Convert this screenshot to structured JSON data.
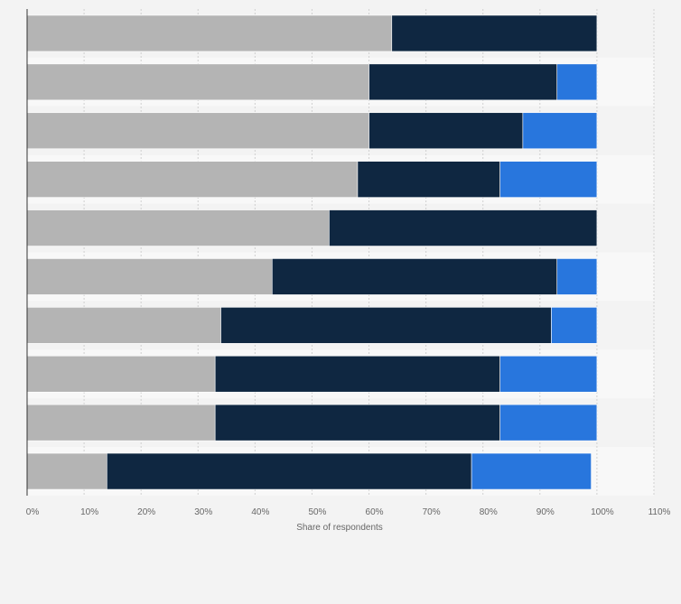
{
  "chart_data": {
    "type": "bar",
    "orientation": "horizontal",
    "stacked": true,
    "xlabel": "Share of respondents",
    "xlim": [
      0,
      110
    ],
    "xticks": [
      0,
      10,
      20,
      30,
      40,
      50,
      60,
      70,
      80,
      90,
      100,
      110
    ],
    "x_tick_suffix": "%",
    "grid": true,
    "series": [
      {
        "values": [
          64,
          60,
          60,
          58,
          53,
          43,
          34,
          33,
          33,
          14
        ],
        "color": "#b4b4b4"
      },
      {
        "values": [
          36,
          33,
          27,
          25,
          47,
          50,
          58,
          50,
          50,
          64
        ],
        "color": "#0f2741"
      },
      {
        "values": [
          0,
          7,
          13,
          17,
          0,
          7,
          8,
          17,
          17,
          21
        ],
        "color": "#2876dd"
      }
    ]
  }
}
